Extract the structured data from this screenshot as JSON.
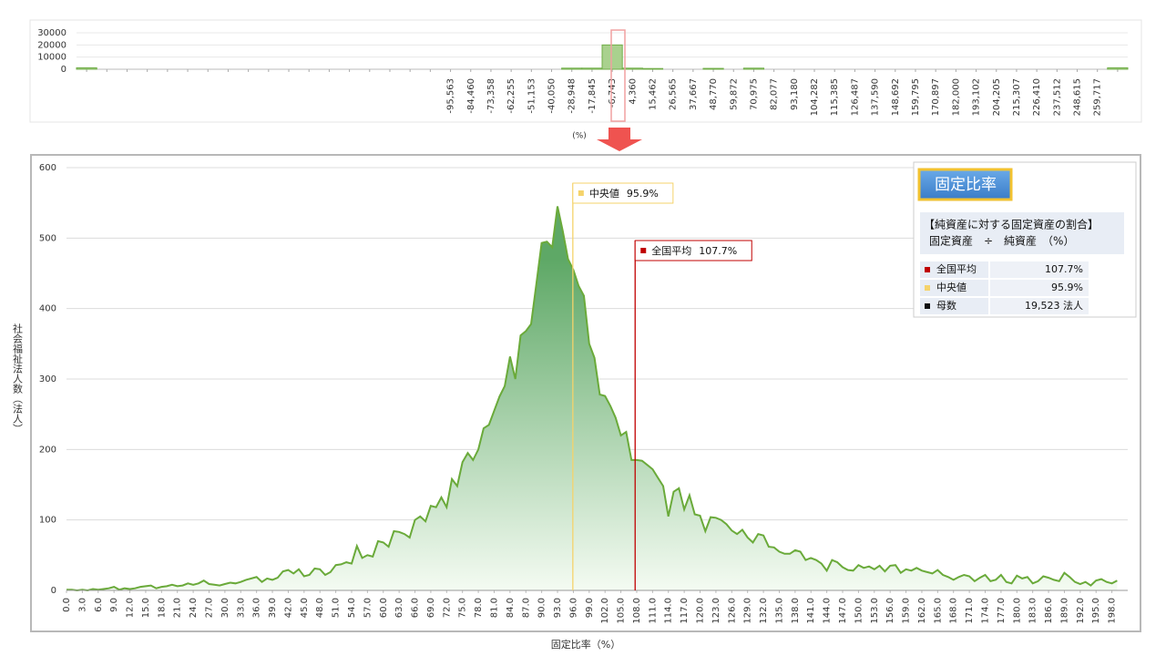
{
  "chart_data": [
    {
      "type": "bar",
      "x_label": "(%)",
      "color": "#a9d18e",
      "edge_color": "#70ad47",
      "categories": [
        null,
        null,
        null,
        null,
        null,
        null,
        null,
        null,
        null,
        null,
        null,
        null,
        null,
        null,
        null,
        null,
        null,
        null,
        "-95,563",
        "-84,460",
        "-73,358",
        "-62,255",
        "-51,153",
        "-40,050",
        "-28,948",
        "-17,845",
        "-6,743",
        "4,360",
        "15,462",
        "26,565",
        "37,667",
        "48,770",
        "59,872",
        "70,975",
        "82,077",
        "93,180",
        "104,282",
        "115,385",
        "126,487",
        "137,590",
        "148,692",
        "159,795",
        "170,897",
        "182,000",
        "193,102",
        "204,205",
        "215,307",
        "226,410",
        "237,512",
        "248,615",
        "259,717",
        null
      ],
      "values": [
        1200,
        0,
        0,
        0,
        0,
        0,
        0,
        0,
        0,
        0,
        0,
        0,
        0,
        0,
        0,
        0,
        0,
        0,
        0,
        0,
        0,
        0,
        0,
        0,
        900,
        900,
        20000,
        900,
        600,
        0,
        0,
        700,
        0,
        900,
        0,
        0,
        0,
        0,
        0,
        0,
        0,
        0,
        0,
        0,
        0,
        0,
        0,
        0,
        0,
        0,
        0,
        1200
      ],
      "ylim": [
        0,
        30000
      ],
      "yticks": [
        0,
        10000,
        20000,
        30000
      ],
      "grid": true
    },
    {
      "type": "area",
      "x_label": "固定比率（%）",
      "y_label": "社会福祉法人数（法人）",
      "color": "#6aaa3a",
      "fill_top": "#5ea866",
      "fill_bottom": "#f4fbf2",
      "x": [
        0,
        1,
        2,
        3,
        4,
        5,
        6,
        7,
        8,
        9,
        10,
        11,
        12,
        13,
        14,
        15,
        16,
        17,
        18,
        19,
        20,
        21,
        22,
        23,
        24,
        25,
        26,
        27,
        28,
        29,
        30,
        31,
        32,
        33,
        34,
        35,
        36,
        37,
        38,
        39,
        40,
        41,
        42,
        43,
        44,
        45,
        46,
        47,
        48,
        49,
        50,
        51,
        52,
        53,
        54,
        55,
        56,
        57,
        58,
        59,
        60,
        61,
        62,
        63,
        64,
        65,
        66,
        67,
        68,
        69,
        70,
        71,
        72,
        73,
        74,
        75,
        76,
        77,
        78,
        79,
        80,
        81,
        82,
        83,
        84,
        85,
        86,
        87,
        88,
        89,
        90,
        91,
        92,
        93,
        94,
        95,
        96,
        97,
        98,
        99,
        100,
        101,
        102,
        103,
        104,
        105,
        106,
        107,
        108,
        109,
        110,
        111,
        112,
        113,
        114,
        115,
        116,
        117,
        118,
        119,
        120,
        121,
        122,
        123,
        124,
        125,
        126,
        127,
        128,
        129,
        130,
        131,
        132,
        133,
        134,
        135,
        136,
        137,
        138,
        139,
        140,
        141,
        142,
        143,
        144,
        145,
        146,
        147,
        148,
        149,
        150,
        151,
        152,
        153,
        154,
        155,
        156,
        157,
        158,
        159,
        160,
        161,
        162,
        163,
        164,
        165,
        166,
        167,
        168,
        169,
        170,
        171,
        172,
        173,
        174,
        175,
        176,
        177,
        178,
        179,
        180,
        181,
        182,
        183,
        184,
        185,
        186,
        187,
        188,
        189,
        190,
        191,
        192,
        193,
        194,
        195,
        196,
        197,
        198,
        199
      ],
      "values": [
        1,
        1,
        0,
        1,
        0,
        2,
        1,
        2,
        3,
        5,
        1,
        3,
        2,
        3,
        5,
        6,
        7,
        3,
        5,
        6,
        8,
        6,
        7,
        10,
        8,
        10,
        14,
        9,
        8,
        7,
        9,
        11,
        10,
        12,
        15,
        17,
        19,
        12,
        17,
        15,
        18,
        27,
        29,
        24,
        30,
        20,
        22,
        31,
        30,
        22,
        26,
        36,
        37,
        40,
        38,
        63,
        46,
        50,
        48,
        70,
        68,
        62,
        84,
        83,
        80,
        75,
        100,
        105,
        98,
        120,
        118,
        132,
        118,
        158,
        148,
        182,
        195,
        185,
        200,
        230,
        235,
        255,
        275,
        290,
        332,
        300,
        362,
        368,
        378,
        435,
        493,
        495,
        487,
        545,
        510,
        470,
        455,
        432,
        418,
        350,
        330,
        278,
        276,
        262,
        245,
        220,
        225,
        185,
        185,
        184,
        178,
        172,
        160,
        148,
        105,
        140,
        145,
        115,
        135,
        108,
        106,
        84,
        104,
        103,
        100,
        94,
        85,
        80,
        86,
        75,
        68,
        80,
        78,
        62,
        61,
        55,
        52,
        52,
        57,
        55,
        43,
        46,
        43,
        38,
        28,
        43,
        40,
        33,
        29,
        28,
        36,
        32,
        34,
        30,
        35,
        27,
        35,
        36,
        25,
        30,
        28,
        32,
        28,
        26,
        24,
        29,
        22,
        19,
        15,
        19,
        22,
        20,
        13,
        18,
        22,
        13,
        15,
        22,
        12,
        10,
        21,
        17,
        19,
        10,
        13,
        20,
        18,
        15,
        13,
        25,
        19,
        12,
        9,
        12,
        7,
        14,
        16,
        12,
        10,
        14
      ],
      "xlim": [
        0,
        201
      ],
      "xticks": [
        {
          "value": 0,
          "label": "0.0"
        },
        {
          "value": 3,
          "label": "3.0"
        },
        {
          "value": 6,
          "label": "6.0"
        },
        {
          "value": 9,
          "label": "9.0"
        },
        {
          "value": 12,
          "label": "12.0"
        },
        {
          "value": 15,
          "label": "15.0"
        },
        {
          "value": 18,
          "label": "18.0"
        },
        {
          "value": 21,
          "label": "21.0"
        },
        {
          "value": 24,
          "label": "24.0"
        },
        {
          "value": 27,
          "label": "27.0"
        },
        {
          "value": 30,
          "label": "30.0"
        },
        {
          "value": 33,
          "label": "33.0"
        },
        {
          "value": 36,
          "label": "36.0"
        },
        {
          "value": 39,
          "label": "39.0"
        },
        {
          "value": 42,
          "label": "42.0"
        },
        {
          "value": 45,
          "label": "45.0"
        },
        {
          "value": 48,
          "label": "48.0"
        },
        {
          "value": 51,
          "label": "51.0"
        },
        {
          "value": 54,
          "label": "54.0"
        },
        {
          "value": 57,
          "label": "57.0"
        },
        {
          "value": 60,
          "label": "60.0"
        },
        {
          "value": 63,
          "label": "63.0"
        },
        {
          "value": 66,
          "label": "66.0"
        },
        {
          "value": 69,
          "label": "69.0"
        },
        {
          "value": 72,
          "label": "72.0"
        },
        {
          "value": 75,
          "label": "75.0"
        },
        {
          "value": 78,
          "label": "78.0"
        },
        {
          "value": 81,
          "label": "81.0"
        },
        {
          "value": 84,
          "label": "84.0"
        },
        {
          "value": 87,
          "label": "87.0"
        },
        {
          "value": 90,
          "label": "90.0"
        },
        {
          "value": 93,
          "label": "93.0"
        },
        {
          "value": 96,
          "label": "96.0"
        },
        {
          "value": 99,
          "label": "99.0"
        },
        {
          "value": 102,
          "label": "102.0"
        },
        {
          "value": 105,
          "label": "105.0"
        },
        {
          "value": 108,
          "label": "108.0"
        },
        {
          "value": 111,
          "label": "111.0"
        },
        {
          "value": 114,
          "label": "114.0"
        },
        {
          "value": 117,
          "label": "117.0"
        },
        {
          "value": 120,
          "label": "120.0"
        },
        {
          "value": 123,
          "label": "123.0"
        },
        {
          "value": 126,
          "label": "126.0"
        },
        {
          "value": 129,
          "label": "129.0"
        },
        {
          "value": 132,
          "label": "132.0"
        },
        {
          "value": 135,
          "label": "135.0"
        },
        {
          "value": 138,
          "label": "138.0"
        },
        {
          "value": 141,
          "label": "141.0"
        },
        {
          "value": 144,
          "label": "144.0"
        },
        {
          "value": 147,
          "label": "147.0"
        },
        {
          "value": 150,
          "label": "150.0"
        },
        {
          "value": 153,
          "label": "153.0"
        },
        {
          "value": 156,
          "label": "156.0"
        },
        {
          "value": 159,
          "label": "159.0"
        },
        {
          "value": 162,
          "label": "162.0"
        },
        {
          "value": 165,
          "label": "165.0"
        },
        {
          "value": 168,
          "label": "168.0"
        },
        {
          "value": 171,
          "label": "171.0"
        },
        {
          "value": 174,
          "label": "174.0"
        },
        {
          "value": 177,
          "label": "177.0"
        },
        {
          "value": 180,
          "label": "180.0"
        },
        {
          "value": 183,
          "label": "183.0"
        },
        {
          "value": 186,
          "label": "186.0"
        },
        {
          "value": 189,
          "label": "189.0"
        },
        {
          "value": 192,
          "label": "192.0"
        },
        {
          "value": 195,
          "label": "195.0"
        },
        {
          "value": 198,
          "label": "198.0"
        }
      ],
      "ylim": [
        0,
        600
      ],
      "yticks": [
        0,
        100,
        200,
        300,
        400,
        500,
        600
      ],
      "grid": true,
      "markers": [
        {
          "name": "全国平均",
          "value": 107.7,
          "value_label": "107.7%",
          "color": "#c00000"
        },
        {
          "name": "中央値",
          "value": 95.9,
          "value_label": "95.9%",
          "color": "#f5d36b"
        }
      ],
      "panel": {
        "title": "固定比率",
        "description": [
          "【純資産に対する固定資産の割合】",
          "固定資産　÷　純資産　（%）"
        ],
        "population": {
          "name": "母数",
          "value": "19,523  法人",
          "color": "#111111"
        }
      }
    }
  ]
}
